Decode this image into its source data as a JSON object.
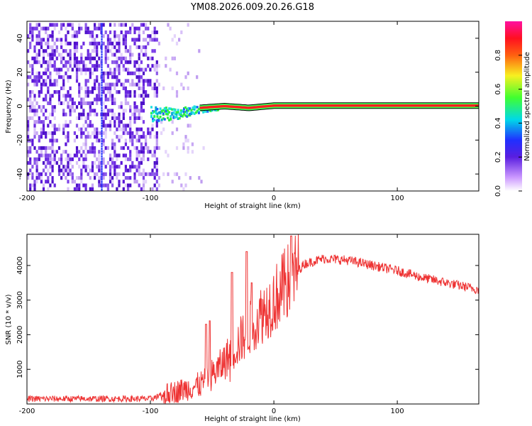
{
  "page": {
    "title": "YM08.2026.009.20.26.G18"
  },
  "chart_data": [
    {
      "type": "heatmap",
      "title": "YM08.2026.009.20.26.G18",
      "xlabel": "Height of straight line (km)",
      "ylabel": "Frequency (Hz)",
      "xlim": [
        -200,
        166
      ],
      "ylim": [
        -50,
        50
      ],
      "xticks": [
        "-200",
        "-100",
        "0",
        "100"
      ],
      "yticks": [
        "40",
        "20",
        "0",
        "-20",
        "-40"
      ],
      "colorbar": {
        "label": "Normalized spectral amplitude",
        "range": [
          0.0,
          1.0
        ],
        "ticks": [
          "0.0",
          "0.2",
          "0.4",
          "0.6",
          "0.8"
        ]
      },
      "ridge_frequency_hz": [
        {
          "x": -100,
          "y": -4
        },
        {
          "x": -80,
          "y": -4
        },
        {
          "x": -60,
          "y": -1
        },
        {
          "x": -40,
          "y": 0
        },
        {
          "x": -20,
          "y": -1
        },
        {
          "x": 0,
          "y": 0.3
        },
        {
          "x": 166,
          "y": 0.3
        }
      ],
      "noise_region_x": [
        -200,
        -95
      ]
    },
    {
      "type": "line",
      "xlabel": "Height of straight line (km)",
      "ylabel": "SNR (10 * v/v)",
      "xlim": [
        -200,
        166
      ],
      "ylim": [
        0,
        4900
      ],
      "xticks": [
        "-200",
        "-100",
        "0",
        "100"
      ],
      "yticks": [
        "4000",
        "3000",
        "2000",
        "1000"
      ],
      "series": [
        {
          "name": "SNR",
          "color": "#ee3333",
          "envelope": [
            {
              "x": -200,
              "y": 150
            },
            {
              "x": -100,
              "y": 150
            },
            {
              "x": -85,
              "y": 300
            },
            {
              "x": -60,
              "y": 550
            },
            {
              "x": -45,
              "y": 1000
            },
            {
              "x": -30,
              "y": 1700
            },
            {
              "x": -15,
              "y": 2400
            },
            {
              "x": 0,
              "y": 3000
            },
            {
              "x": 15,
              "y": 3700
            },
            {
              "x": 25,
              "y": 4050
            },
            {
              "x": 40,
              "y": 4200
            },
            {
              "x": 60,
              "y": 4150
            },
            {
              "x": 80,
              "y": 4000
            },
            {
              "x": 100,
              "y": 3850
            },
            {
              "x": 120,
              "y": 3650
            },
            {
              "x": 140,
              "y": 3500
            },
            {
              "x": 166,
              "y": 3300
            }
          ],
          "spikes": [
            {
              "x": -55,
              "y": 2300
            },
            {
              "x": -52,
              "y": 2400
            },
            {
              "x": -34,
              "y": 3800
            },
            {
              "x": -22,
              "y": 4400
            },
            {
              "x": -18,
              "y": 3500
            },
            {
              "x": 14,
              "y": 4850
            }
          ]
        }
      ]
    }
  ]
}
